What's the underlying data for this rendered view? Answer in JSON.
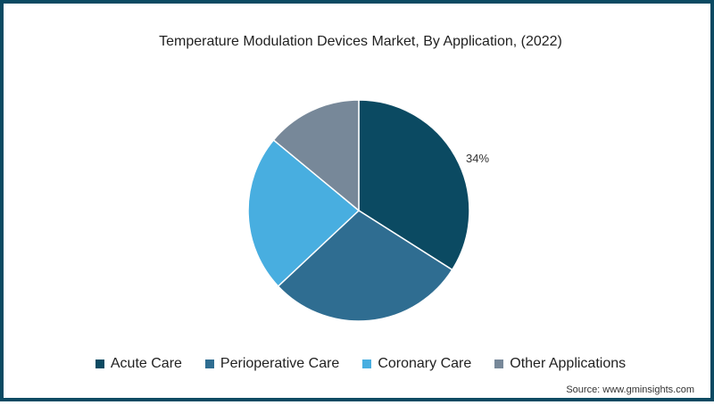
{
  "chart_data": {
    "type": "pie",
    "title": "Temperature Modulation Devices Market, By Application, (2022)",
    "categories": [
      "Acute Care",
      "Perioperative Care",
      "Coronary Care",
      "Other Applications"
    ],
    "values": [
      34,
      29,
      23,
      14
    ],
    "colors": [
      "#0b4a62",
      "#2f6d91",
      "#48aee0",
      "#778899"
    ],
    "data_labels": [
      {
        "category": "Acute Care",
        "label": "34%"
      }
    ],
    "legend_position": "bottom",
    "start_angle": "top, clockwise"
  },
  "title": "Temperature Modulation Devices Market, By Application, (2022)",
  "label_acute": "34%",
  "legend": [
    {
      "label": "Acute Care",
      "color": "#0b4a62"
    },
    {
      "label": "Perioperative Care",
      "color": "#2f6d91"
    },
    {
      "label": "Coronary Care",
      "color": "#48aee0"
    },
    {
      "label": "Other Applications",
      "color": "#778899"
    }
  ],
  "source": "Source: www.gminsights.com",
  "frame_color": "#0b4a62"
}
